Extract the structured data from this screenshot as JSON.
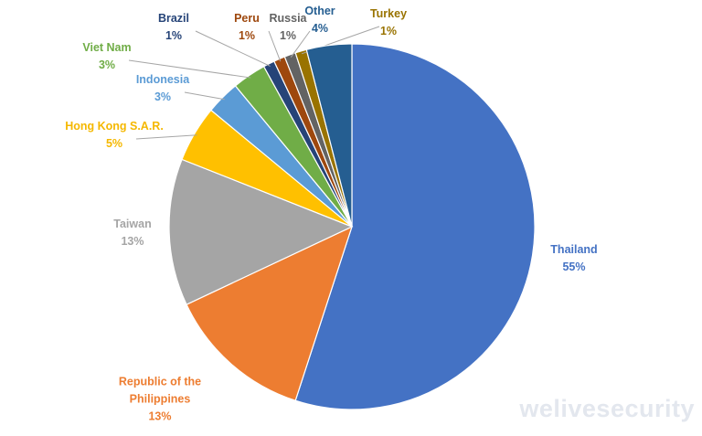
{
  "chart_data": {
    "type": "pie",
    "categories": [
      "Thailand",
      "Republic of the Philippines",
      "Taiwan",
      "Hong Kong S.A.R.",
      "Indonesia",
      "Viet Nam",
      "Brazil",
      "Peru",
      "Russia",
      "Turkey",
      "Other"
    ],
    "values": [
      55,
      13,
      13,
      5,
      3,
      3,
      1,
      1,
      1,
      1,
      4
    ],
    "value_labels": [
      "55%",
      "13%",
      "13%",
      "5%",
      "3%",
      "3%",
      "1%",
      "1%",
      "1%",
      "1%",
      "4%"
    ],
    "colors": [
      "#4472c4",
      "#ed7d31",
      "#a5a5a5",
      "#ffc000",
      "#5b9bd5",
      "#70ad47",
      "#264478",
      "#9e480e",
      "#636363",
      "#997300",
      "#255e91"
    ],
    "watermark": "welivesecurity"
  }
}
